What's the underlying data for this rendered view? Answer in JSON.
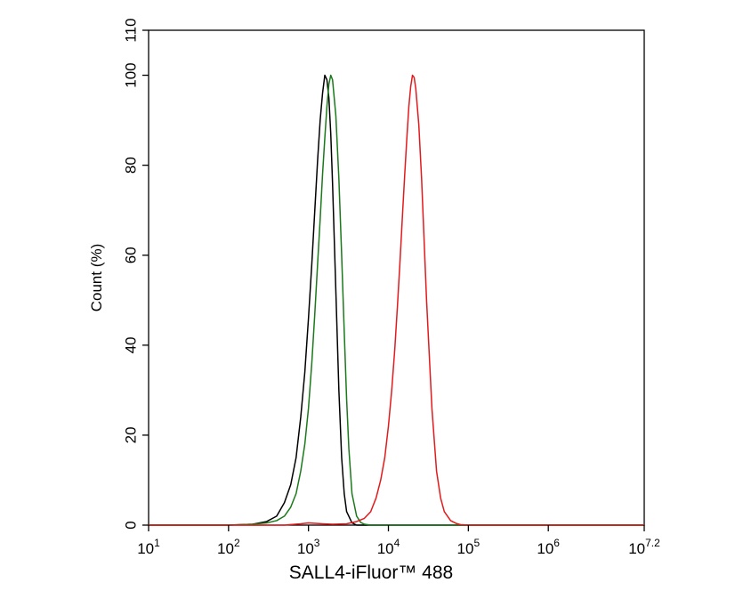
{
  "chart_data": {
    "type": "line",
    "title": "",
    "xlabel": "SALL4-iFluor™ 488",
    "ylabel": "Count  (%)",
    "x_scale": "log10",
    "xlim": [
      10,
      15848931.9
    ],
    "ylim": [
      0,
      110
    ],
    "grid": false,
    "legend": "none",
    "x_ticks": [
      {
        "base": "10",
        "exp": "1"
      },
      {
        "base": "10",
        "exp": "2"
      },
      {
        "base": "10",
        "exp": "3"
      },
      {
        "base": "10",
        "exp": "4"
      },
      {
        "base": "10",
        "exp": "5"
      },
      {
        "base": "10",
        "exp": "6"
      },
      {
        "base": "10",
        "exp": "7.2"
      }
    ],
    "y_ticks": [
      {
        "value": 0,
        "label": "0"
      },
      {
        "value": 20,
        "label": "20"
      },
      {
        "value": 40,
        "label": "40"
      },
      {
        "value": 60,
        "label": "60"
      },
      {
        "value": 80,
        "label": "80"
      },
      {
        "value": 100,
        "label": "100"
      },
      {
        "value": 110,
        "label": "110"
      }
    ],
    "series": [
      {
        "color": "#000000",
        "x": [
          10,
          100,
          200,
          300,
          400,
          500,
          600,
          700,
          800,
          900,
          1000,
          1100,
          1200,
          1300,
          1400,
          1500,
          1600,
          1700,
          1800,
          1900,
          2000,
          2200,
          2400,
          2600,
          2800,
          3000,
          3500,
          4000,
          5000,
          6000,
          10000,
          15848931.9
        ],
        "y": [
          0,
          0,
          0.2,
          0.8,
          2,
          5,
          9,
          15,
          24,
          34,
          46,
          58,
          70,
          81,
          90,
          96,
          100,
          99,
          95,
          87,
          76,
          52,
          30,
          15,
          7,
          3,
          0.5,
          0,
          0,
          0,
          0,
          0
        ]
      },
      {
        "color": "#1a7a1a",
        "x": [
          10,
          100,
          200,
          300,
          400,
          500,
          600,
          700,
          800,
          900,
          1000,
          1100,
          1200,
          1300,
          1400,
          1500,
          1600,
          1700,
          1800,
          1900,
          2000,
          2200,
          2400,
          2600,
          2800,
          3000,
          3200,
          3500,
          4000,
          4500,
          5000,
          6000,
          10000,
          15848931.9
        ],
        "y": [
          0,
          0,
          0.2,
          0.5,
          1,
          2,
          4,
          7,
          12,
          18,
          26,
          36,
          47,
          58,
          68,
          78,
          86,
          93,
          98,
          100,
          99,
          91,
          77,
          60,
          43,
          28,
          17,
          7,
          2,
          0.6,
          0.2,
          0,
          0,
          0
        ]
      },
      {
        "color": "#e31a1c",
        "x": [
          10,
          500,
          800,
          1000,
          1500,
          2000,
          3000,
          4000,
          5000,
          6000,
          7000,
          8000,
          9000,
          10000,
          11000,
          12000,
          13000,
          14000,
          15000,
          16000,
          17000,
          18000,
          19000,
          20000,
          21000,
          22000,
          24000,
          26000,
          28000,
          30000,
          35000,
          40000,
          45000,
          50000,
          60000,
          70000,
          80000,
          100000,
          15848931.9
        ],
        "y": [
          0,
          0,
          0.3,
          0.5,
          0.3,
          0.2,
          0.3,
          0.8,
          1.5,
          3,
          6,
          10,
          15,
          22,
          30,
          39,
          49,
          59,
          69,
          78,
          86,
          93,
          97.5,
          100,
          99.5,
          97,
          89,
          77,
          63,
          50,
          26,
          12,
          6,
          3,
          1,
          0.4,
          0.1,
          0,
          0
        ]
      }
    ]
  }
}
